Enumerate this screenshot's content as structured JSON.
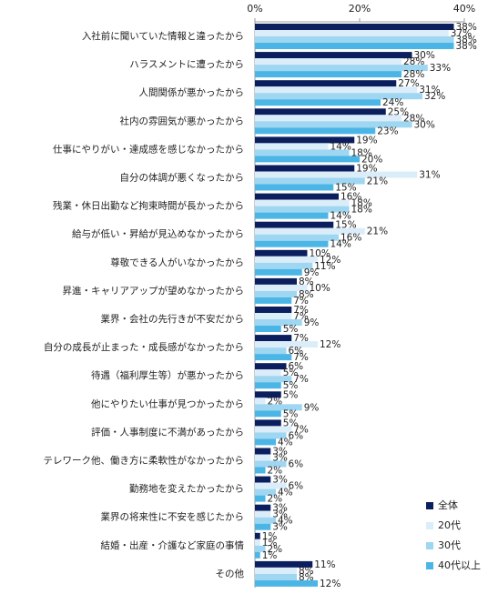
{
  "chart_data": {
    "type": "bar",
    "orientation": "horizontal",
    "categories": [
      "入社前に聞いていた情報と違ったから",
      "ハラスメントに遭ったから",
      "人間関係が悪かったから",
      "社内の雰囲気が悪かったから",
      "仕事にやりがい・達成感を感じなかったから",
      "自分の体調が悪くなったから",
      "残業・休日出勤など拘束時間が長かったから",
      "給与が低い・昇給が見込めなかったから",
      "尊敬できる人がいなかったから",
      "昇進・キャリアアップが望めなかったから",
      "業界・会社の先行きが不安だから",
      "自分の成長が止まった・成長感がなかったから",
      "待遇（福利厚生等）が悪かったから",
      "他にやりたい仕事が見つかったから",
      "評価・人事制度に不満があったから",
      "テレワーク他、働き方に柔軟性がなかったから",
      "勤務地を変えたかったから",
      "業界の将来性に不安を感じたから",
      "結婚・出産・介護など家庭の事情",
      "その他"
    ],
    "series": [
      {
        "name": "全体",
        "color": "#0b1f5e",
        "values": [
          38,
          30,
          27,
          25,
          19,
          19,
          16,
          15,
          10,
          8,
          7,
          7,
          6,
          5,
          5,
          3,
          3,
          3,
          1,
          11
        ],
        "value_labels": [
          "38%",
          "30%",
          "27%",
          "25%",
          "19%",
          "19%",
          "16%",
          "15%",
          "10%",
          "8%",
          "7%",
          "7%",
          "6%",
          "5%",
          "5%",
          "3%",
          "3%",
          "3%",
          "1%",
          "11%"
        ]
      },
      {
        "name": "20代",
        "color": "#dcedfa",
        "values": [
          37,
          28,
          31,
          28,
          14,
          31,
          18,
          21,
          12,
          10,
          7,
          12,
          5,
          2,
          7,
          3,
          6,
          3,
          1,
          8
        ],
        "value_labels": [
          "37%",
          "28%",
          "31%",
          "28%",
          "14%",
          "31%",
          "18%",
          "21%",
          "12%",
          "10%",
          "7%",
          "12%",
          "5%",
          "2%",
          "7%",
          "3%",
          "6%",
          "3%",
          "1%",
          "8%"
        ]
      },
      {
        "name": "30代",
        "color": "#9fd6f1",
        "values": [
          38,
          33,
          32,
          30,
          18,
          21,
          18,
          16,
          11,
          8,
          9,
          6,
          7,
          9,
          6,
          6,
          4,
          4,
          2,
          8
        ],
        "value_labels": [
          "38%",
          "33%",
          "32%",
          "30%",
          "18%",
          "21%",
          "18%",
          "16%",
          "11%",
          "8%",
          "9%",
          "6%",
          "7%",
          "9%",
          "6%",
          "6%",
          "4%",
          "4%",
          "2%",
          "8%"
        ]
      },
      {
        "name": "40代以上",
        "color": "#4bb6e6",
        "values": [
          38,
          28,
          24,
          23,
          20,
          15,
          14,
          14,
          9,
          7,
          5,
          7,
          5,
          5,
          4,
          2,
          2,
          3,
          1,
          12
        ],
        "value_labels": [
          "38%",
          "28%",
          "24%",
          "23%",
          "20%",
          "15%",
          "14%",
          "14%",
          "9%",
          "7%",
          "5%",
          "7%",
          "5%",
          "5%",
          "4%",
          "2%",
          "2%",
          "3%",
          "1%",
          "12%"
        ]
      }
    ],
    "xlim": [
      0,
      40
    ],
    "xticks": [
      {
        "value": 0,
        "label": "0%"
      },
      {
        "value": 20,
        "label": "20%"
      },
      {
        "value": 40,
        "label": "40%"
      }
    ],
    "legend": "lower right"
  }
}
